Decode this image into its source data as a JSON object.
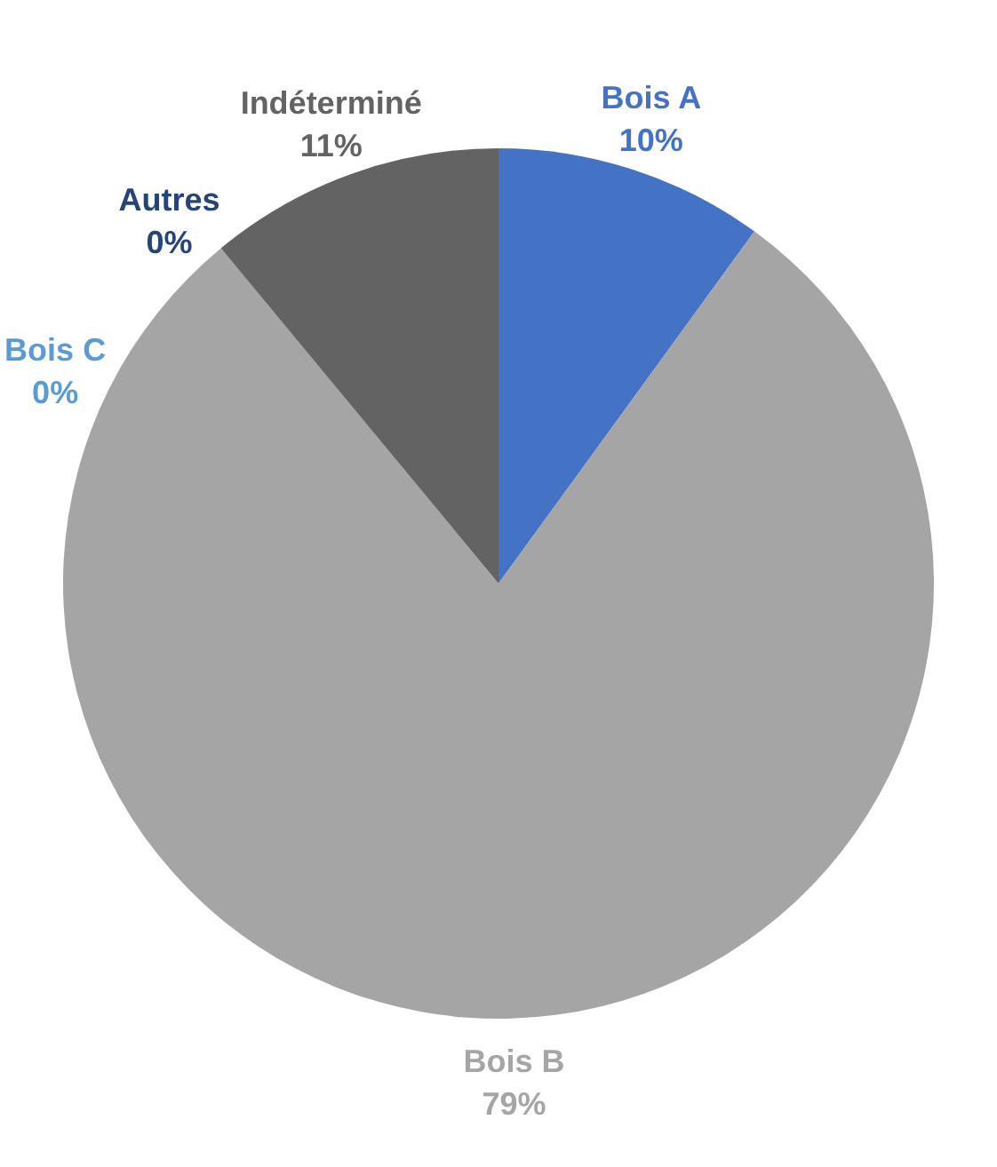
{
  "chart_data": {
    "type": "pie",
    "categories": [
      "Bois A",
      "Bois B",
      "Bois C",
      "Autres",
      "Indéterminé"
    ],
    "values": [
      10,
      79,
      0,
      0,
      11
    ],
    "value_labels": [
      "10%",
      "79%",
      "0%",
      "0%",
      "11%"
    ],
    "colors": [
      "#4472c4",
      "#a5a5a5",
      "#5b9bd5",
      "#264478",
      "#636363"
    ]
  }
}
